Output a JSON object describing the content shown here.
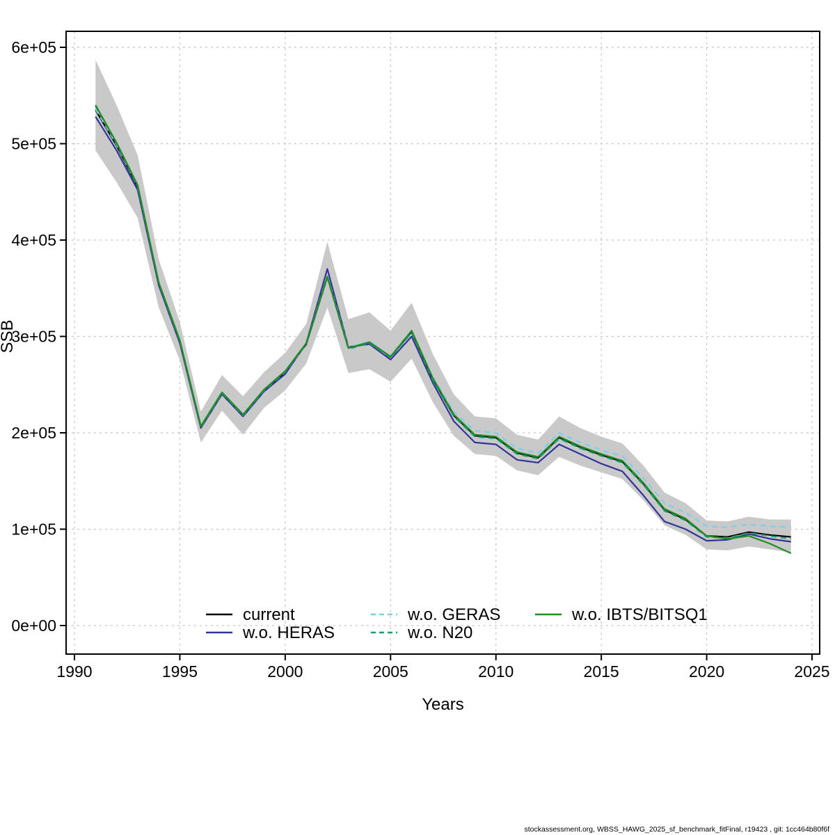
{
  "footer": {
    "text": "stockassessment.org, WBSS_HAWG_2025_sf_benchmark_fitFinal, r19423 , git: 1cc464b80f6f"
  },
  "chart_data": {
    "type": "line",
    "title": "",
    "xlabel": "Years",
    "ylabel": "SSB",
    "xlim": [
      1990,
      2025
    ],
    "ylim": [
      0,
      600000
    ],
    "grid": true,
    "legend_position": "bottom-inside",
    "x_ticks": [
      1990,
      1995,
      2000,
      2005,
      2010,
      2015,
      2020,
      2025
    ],
    "x_tick_labels": [
      "1990",
      "1995",
      "2000",
      "2005",
      "2010",
      "2015",
      "2020",
      "2025"
    ],
    "y_ticks": [
      0,
      100000,
      200000,
      300000,
      400000,
      500000,
      600000
    ],
    "y_tick_labels": [
      "0e+00",
      "1e+05",
      "2e+05",
      "3e+05",
      "4e+05",
      "5e+05",
      "6e+05"
    ],
    "years": [
      1991,
      1992,
      1993,
      1994,
      1995,
      1996,
      1997,
      1998,
      1999,
      2000,
      2001,
      2002,
      2003,
      2004,
      2005,
      2006,
      2007,
      2008,
      2009,
      2010,
      2011,
      2012,
      2013,
      2014,
      2015,
      2016,
      2017,
      2018,
      2019,
      2020,
      2021,
      2022,
      2023,
      2024
    ],
    "band": {
      "name": "confidence-band",
      "color": "#c9c9c9",
      "upper": [
        587000,
        540000,
        488000,
        380000,
        315000,
        222000,
        260000,
        238000,
        263000,
        283000,
        313000,
        398000,
        318000,
        325000,
        306000,
        335000,
        282000,
        240000,
        217000,
        215000,
        198000,
        193000,
        217000,
        205000,
        196000,
        189000,
        166000,
        138000,
        127000,
        109000,
        108000,
        113000,
        110000,
        110000
      ],
      "lower": [
        493000,
        460000,
        423000,
        330000,
        275000,
        190000,
        223000,
        198000,
        226000,
        244000,
        272000,
        330000,
        262000,
        266000,
        253000,
        277000,
        232000,
        197000,
        178000,
        176000,
        161000,
        156000,
        175000,
        166000,
        159000,
        152000,
        130000,
        104000,
        94000,
        79000,
        78000,
        82000,
        79000,
        76000
      ]
    },
    "series": [
      {
        "name": "current",
        "color": "#000000",
        "dash": "solid",
        "values": [
          535000,
          498000,
          455000,
          355000,
          295000,
          206000,
          241000,
          218000,
          244000,
          263000,
          292000,
          362000,
          288000,
          294000,
          279000,
          305000,
          256000,
          218000,
          197000,
          195000,
          179000,
          174000,
          195000,
          185000,
          177000,
          170000,
          147000,
          120000,
          110000,
          93000,
          92000,
          97000,
          94000,
          92000
        ]
      },
      {
        "name": "w.o. HERAS",
        "color": "#333399",
        "dash": "solid",
        "values": [
          528000,
          493000,
          452000,
          353000,
          293000,
          205000,
          240000,
          217000,
          243000,
          261000,
          293000,
          370000,
          289000,
          292000,
          276000,
          300000,
          252000,
          212000,
          190000,
          188000,
          172000,
          169000,
          188000,
          178000,
          168000,
          160000,
          135000,
          108000,
          100000,
          88000,
          89000,
          95000,
          90000,
          87000
        ]
      },
      {
        "name": "w.o. GERAS",
        "color": "#7fcde8",
        "dash": "dashed",
        "values": [
          536000,
          499000,
          456000,
          356000,
          296000,
          207000,
          242000,
          219000,
          245000,
          264000,
          293000,
          363000,
          289000,
          295000,
          280000,
          306000,
          258000,
          222000,
          202000,
          200000,
          184000,
          179000,
          200000,
          190000,
          182000,
          176000,
          153000,
          127000,
          117000,
          103000,
          102000,
          105000,
          103000,
          102000
        ]
      },
      {
        "name": "w.o. N20",
        "color": "#1b9e77",
        "dash": "dashed",
        "values": [
          539000,
          500000,
          456000,
          355000,
          295000,
          206000,
          241000,
          218000,
          244000,
          263000,
          292000,
          361000,
          287000,
          293000,
          278000,
          304000,
          255000,
          217000,
          196000,
          194000,
          178000,
          173000,
          194000,
          184000,
          176000,
          169000,
          146000,
          119000,
          109000,
          92000,
          91000,
          96000,
          93000,
          90000
        ]
      },
      {
        "name": "w.o. IBTS/BITSQ1",
        "color": "#228b22",
        "dash": "solid",
        "values": [
          540000,
          501000,
          457000,
          356000,
          296000,
          207000,
          242000,
          219000,
          245000,
          264000,
          293000,
          362000,
          288000,
          294000,
          279000,
          306000,
          257000,
          219000,
          198000,
          196000,
          180000,
          175000,
          196000,
          186000,
          178000,
          171000,
          148000,
          121000,
          111000,
          93000,
          90000,
          93000,
          85000,
          75000
        ]
      }
    ],
    "legend": [
      [
        "current",
        "w.o. HERAS"
      ],
      [
        "w.o. GERAS",
        "w.o. N20"
      ],
      [
        "w.o. IBTS/BITSQ1"
      ]
    ],
    "style": {
      "grid_color": "#c4c4c4",
      "box_color": "#000000"
    }
  }
}
